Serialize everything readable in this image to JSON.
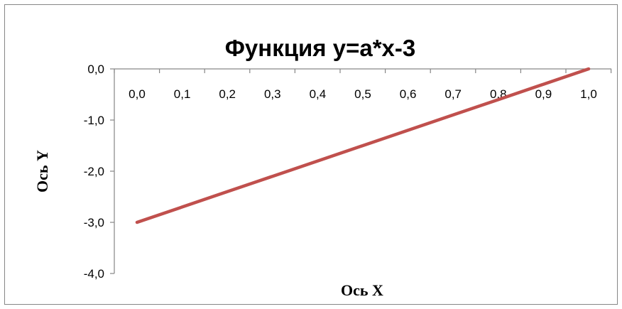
{
  "chart_data": {
    "type": "line",
    "title": "Функция y=a*x-3",
    "xlabel": "Ось X",
    "ylabel": "Ось Y",
    "x_tick_labels": [
      "0,0",
      "0,1",
      "0,2",
      "0,3",
      "0,4",
      "0,5",
      "0,6",
      "0,7",
      "0,8",
      "0,9",
      "1,0"
    ],
    "y_tick_labels": [
      "0,0",
      "-1,0",
      "-2,0",
      "-3,0",
      "-4,0"
    ],
    "x": [
      0.0,
      0.1,
      0.2,
      0.3,
      0.4,
      0.5,
      0.6,
      0.7,
      0.8,
      0.9,
      1.0
    ],
    "series": [
      {
        "values": [
          -3.0,
          -2.7,
          -2.4,
          -2.1,
          -1.8,
          -1.5,
          -1.2,
          -0.9,
          -0.6,
          -0.3,
          0.0
        ]
      }
    ],
    "xlim": [
      0.0,
      1.0
    ],
    "ylim": [
      -4.0,
      0.0
    ],
    "grid": false,
    "legend": "none",
    "line_color": "#C0504D",
    "axis_color": "#868686",
    "border_color": "#868686"
  }
}
